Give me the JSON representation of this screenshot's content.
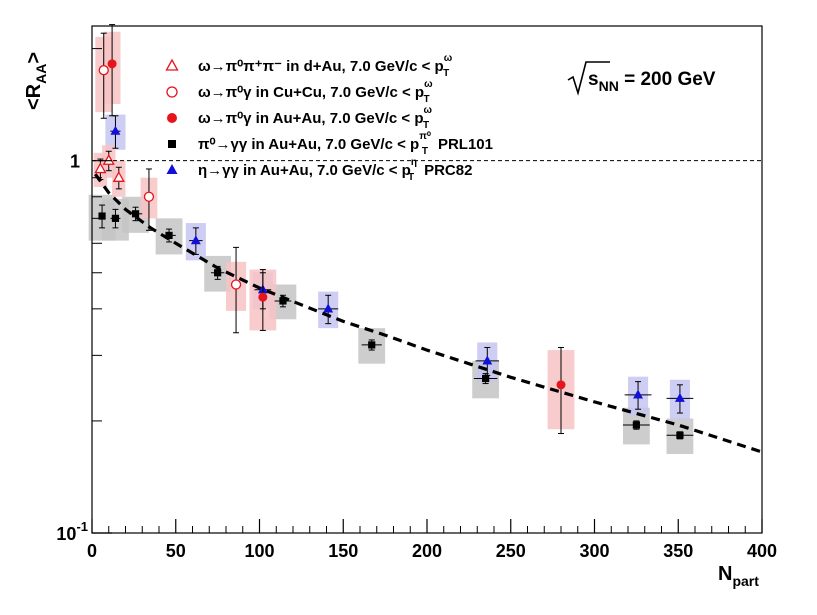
{
  "chart_data": {
    "type": "scatter",
    "xlabel": "N",
    "xlabel_sub": "part",
    "ylabel": "<R",
    "ylabel_sub": "AA",
    "ylabel_end": ">",
    "xlim": [
      0,
      400
    ],
    "ylim": [
      0.1,
      2.3
    ],
    "log_y": true,
    "grid": false,
    "x_ticks": [
      "0",
      "50",
      "100",
      "150",
      "200",
      "250",
      "300",
      "350",
      "400"
    ],
    "y_tick_one": "1",
    "y_tick_tenth_base": "10",
    "y_tick_tenth_exp": "-1",
    "annotation": {
      "pre": "s",
      "sub": "NN",
      "post": " = 200 GeV"
    },
    "legend_position": "top-left",
    "reference_line": 1.0,
    "colors": {
      "omega": "#e8141b",
      "omega_box": "#f7c3c3",
      "pi0": "#000000",
      "pi0_box": "#c4c4c4",
      "eta": "#1010d8",
      "eta_box": "#c6c6f2",
      "fit": "#000000"
    },
    "legend": [
      {
        "series": "omega_dAu",
        "marker": "open-triangle",
        "color": "#e8141b",
        "text": "ω→π⁰π⁺π⁻ in d+Au, 7.0 GeV/c < p",
        "sub": "T",
        "sup": "ω"
      },
      {
        "series": "omega_CuCu",
        "marker": "open-circle",
        "color": "#e8141b",
        "text": "ω→π⁰γ in Cu+Cu, 7.0 GeV/c < p",
        "sub": "T",
        "sup": "ω"
      },
      {
        "series": "omega_AuAu",
        "marker": "filled-circle",
        "color": "#e8141b",
        "text": "ω→π⁰γ in Au+Au, 7.0 GeV/c < p",
        "sub": "T",
        "sup": "ω"
      },
      {
        "series": "pi0_AuAu",
        "marker": "filled-square",
        "color": "#000000",
        "text": "π⁰→γγ in Au+Au, 7.0 GeV/c < p",
        "sub": "T",
        "sup": "π⁰",
        "suffix": "PRL101"
      },
      {
        "series": "eta_AuAu",
        "marker": "filled-triangle",
        "color": "#1010d8",
        "text": "η→γγ in Au+Au, 7.0 GeV/c < p",
        "sub": "T",
        "sup": "η",
        "suffix": "PRC82"
      }
    ],
    "series": [
      {
        "id": "pi0_AuAu",
        "marker": "filled-square",
        "color": "#000000",
        "box": "#c4c4c4",
        "points": [
          {
            "x": 6,
            "y": 0.71,
            "ex": 2,
            "ey": 0.05,
            "sy": 0.1,
            "sx": 8
          },
          {
            "x": 14,
            "y": 0.7,
            "ex": 3,
            "ey": 0.04,
            "sy": 0.09,
            "sx": 8
          },
          {
            "x": 26,
            "y": 0.72,
            "ex": 4,
            "ey": 0.03,
            "sy": 0.08,
            "sx": 8
          },
          {
            "x": 46,
            "y": 0.63,
            "ex": 4,
            "ey": 0.025,
            "sy": 0.07,
            "sx": 8
          },
          {
            "x": 75,
            "y": 0.5,
            "ex": 4,
            "ey": 0.02,
            "sy": 0.055,
            "sx": 8
          },
          {
            "x": 114,
            "y": 0.42,
            "ex": 5,
            "ey": 0.015,
            "sy": 0.045,
            "sx": 8
          },
          {
            "x": 167,
            "y": 0.32,
            "ex": 6,
            "ey": 0.01,
            "sy": 0.035,
            "sx": 8
          },
          {
            "x": 235,
            "y": 0.26,
            "ex": 7,
            "ey": 0.008,
            "sy": 0.03,
            "sx": 8
          },
          {
            "x": 325,
            "y": 0.195,
            "ex": 8,
            "ey": 0.005,
            "sy": 0.022,
            "sx": 8
          },
          {
            "x": 351,
            "y": 0.183,
            "ex": 8,
            "ey": 0.004,
            "sy": 0.02,
            "sx": 8
          }
        ]
      },
      {
        "id": "eta_AuAu",
        "marker": "filled-triangle",
        "color": "#1010d8",
        "box": "#c6c6f2",
        "points": [
          {
            "x": 14,
            "y": 1.2,
            "ex": 3,
            "ey": 0.12,
            "sy": 0.13,
            "sx": 6
          },
          {
            "x": 62,
            "y": 0.61,
            "ex": 4,
            "ey": 0.05,
            "sy": 0.07,
            "sx": 6
          },
          {
            "x": 102,
            "y": 0.45,
            "ex": 5,
            "ey": 0.05,
            "sy": 0.05,
            "sx": 6
          },
          {
            "x": 141,
            "y": 0.4,
            "ex": 6,
            "ey": 0.035,
            "sy": 0.045,
            "sx": 6
          },
          {
            "x": 236,
            "y": 0.29,
            "ex": 7,
            "ey": 0.025,
            "sy": 0.035,
            "sx": 6
          },
          {
            "x": 326,
            "y": 0.235,
            "ex": 8,
            "ey": 0.02,
            "sy": 0.028,
            "sx": 6
          },
          {
            "x": 351,
            "y": 0.23,
            "ex": 8,
            "ey": 0.02,
            "sy": 0.028,
            "sx": 6
          }
        ]
      },
      {
        "id": "omega_dAu",
        "marker": "open-triangle",
        "color": "#e8141b",
        "box": "#f7c3c3",
        "points": [
          {
            "x": 5,
            "y": 0.95,
            "ex": 0,
            "ey": 0.06,
            "sy": 0.1,
            "sx": 4
          },
          {
            "x": 10,
            "y": 1.0,
            "ex": 0,
            "ey": 0.06,
            "sy": 0.1,
            "sx": 4
          },
          {
            "x": 16,
            "y": 0.9,
            "ex": 0,
            "ey": 0.06,
            "sy": 0.1,
            "sx": 4
          }
        ]
      },
      {
        "id": "omega_CuCu",
        "marker": "open-circle",
        "color": "#e8141b",
        "box": "#f7c3c3",
        "points": [
          {
            "x": 7,
            "y": 1.75,
            "ex": 0,
            "ey": 0.45,
            "sy": 0.4,
            "sx": 5
          },
          {
            "x": 34,
            "y": 0.8,
            "ex": 0,
            "ey": 0.15,
            "sy": 0.1,
            "sx": 5
          },
          {
            "x": 86,
            "y": 0.465,
            "ex": 0,
            "ey": 0.12,
            "sy": 0.07,
            "sx": 6
          }
        ]
      },
      {
        "id": "omega_AuAu",
        "marker": "filled-circle",
        "color": "#e8141b",
        "box": "#f7c3c3",
        "points": [
          {
            "x": 12,
            "y": 1.82,
            "ex": 0,
            "ey": 0.5,
            "sy": 0.4,
            "sx": 5
          },
          {
            "x": 102,
            "y": 0.43,
            "ex": 0,
            "ey": 0.08,
            "sy": 0.08,
            "sx": 8
          },
          {
            "x": 280,
            "y": 0.25,
            "ex": 0,
            "ey": 0.065,
            "sy": 0.06,
            "sx": 8
          }
        ]
      }
    ],
    "fit_curve": {
      "style": "dashed",
      "x": [
        2,
        10,
        20,
        35,
        50,
        75,
        100,
        125,
        150,
        175,
        200,
        250,
        300,
        350,
        400
      ],
      "y": [
        0.92,
        0.82,
        0.74,
        0.66,
        0.6,
        0.515,
        0.455,
        0.41,
        0.37,
        0.34,
        0.31,
        0.262,
        0.225,
        0.195,
        0.165
      ]
    }
  }
}
